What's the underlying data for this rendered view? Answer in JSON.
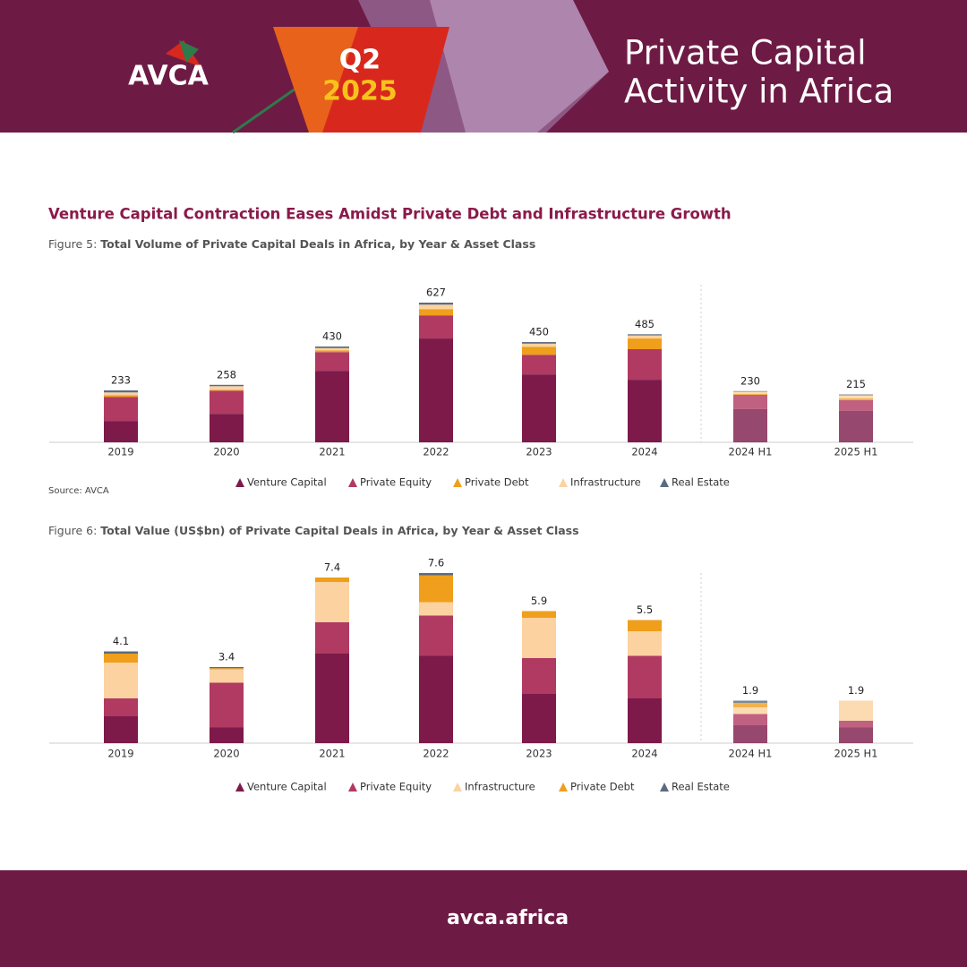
{
  "header": {
    "logo": "AVCA",
    "quarter": "Q2",
    "year": "2025",
    "title_lines": [
      "Private Capital",
      "Activity in Africa"
    ]
  },
  "heading": "Venture Capital Contraction Eases Amidst Private Debt and Infrastructure Growth",
  "footer": "avca.africa",
  "chart_data": [
    {
      "type": "bar",
      "stacked": true,
      "figure": "Figure 5:",
      "title": "Total Volume of Private Capital Deals in Africa, by Year & Asset Class",
      "source": "Source: AVCA",
      "categories": [
        "2019",
        "2020",
        "2021",
        "2022",
        "2023",
        "2024",
        "2024 H1",
        "2025 H1"
      ],
      "totals": [
        233,
        258,
        430,
        627,
        450,
        485,
        230,
        215
      ],
      "series": [
        {
          "name": "Venture Capital",
          "color": "#7d1a4a",
          "values": [
            96,
            128,
            321,
            466,
            305,
            281,
            149,
            141
          ]
        },
        {
          "name": "Private Equity",
          "color": "#b03a62",
          "values": [
            108,
            104,
            84,
            104,
            88,
            137,
            64,
            48
          ]
        },
        {
          "name": "Private Debt",
          "color": "#ef9f1c",
          "values": [
            8,
            4,
            8,
            28,
            36,
            48,
            4,
            8
          ]
        },
        {
          "name": "Infrastructure",
          "color": "#fbd2a0",
          "values": [
            12,
            16,
            10,
            20,
            14,
            14,
            10,
            14
          ]
        },
        {
          "name": "Real Estate",
          "color": "#5b6b80",
          "values": [
            9,
            6,
            7,
            9,
            7,
            5,
            3,
            4
          ]
        }
      ]
    },
    {
      "type": "bar",
      "stacked": true,
      "figure": "Figure 6:",
      "title": "Total Value (US$bn) of Private Capital Deals in Africa, by Year & Asset Class",
      "categories": [
        "2019",
        "2020",
        "2021",
        "2022",
        "2023",
        "2024",
        "2024 H1",
        "2025 H1"
      ],
      "totals": [
        4.1,
        3.4,
        7.4,
        7.6,
        5.9,
        5.5,
        1.9,
        1.9
      ],
      "series": [
        {
          "name": "Venture Capital",
          "color": "#7d1a4a",
          "values": [
            1.2,
            0.7,
            4.0,
            3.9,
            2.2,
            2.0,
            0.8,
            0.7
          ]
        },
        {
          "name": "Private Equity",
          "color": "#b03a62",
          "values": [
            0.8,
            2.0,
            1.4,
            1.8,
            1.6,
            1.9,
            0.5,
            0.3
          ]
        },
        {
          "name": "Infrastructure",
          "color": "#fbd2a0",
          "values": [
            1.6,
            0.6,
            1.8,
            0.6,
            1.8,
            1.1,
            0.3,
            0.9
          ]
        },
        {
          "name": "Private Debt",
          "color": "#ef9f1c",
          "values": [
            0.4,
            0.05,
            0.2,
            1.2,
            0.3,
            0.5,
            0.2,
            0
          ]
        },
        {
          "name": "Real Estate",
          "color": "#5b6b80",
          "values": [
            0.1,
            0.05,
            0,
            0.1,
            0,
            0,
            0.1,
            0
          ]
        }
      ]
    }
  ]
}
